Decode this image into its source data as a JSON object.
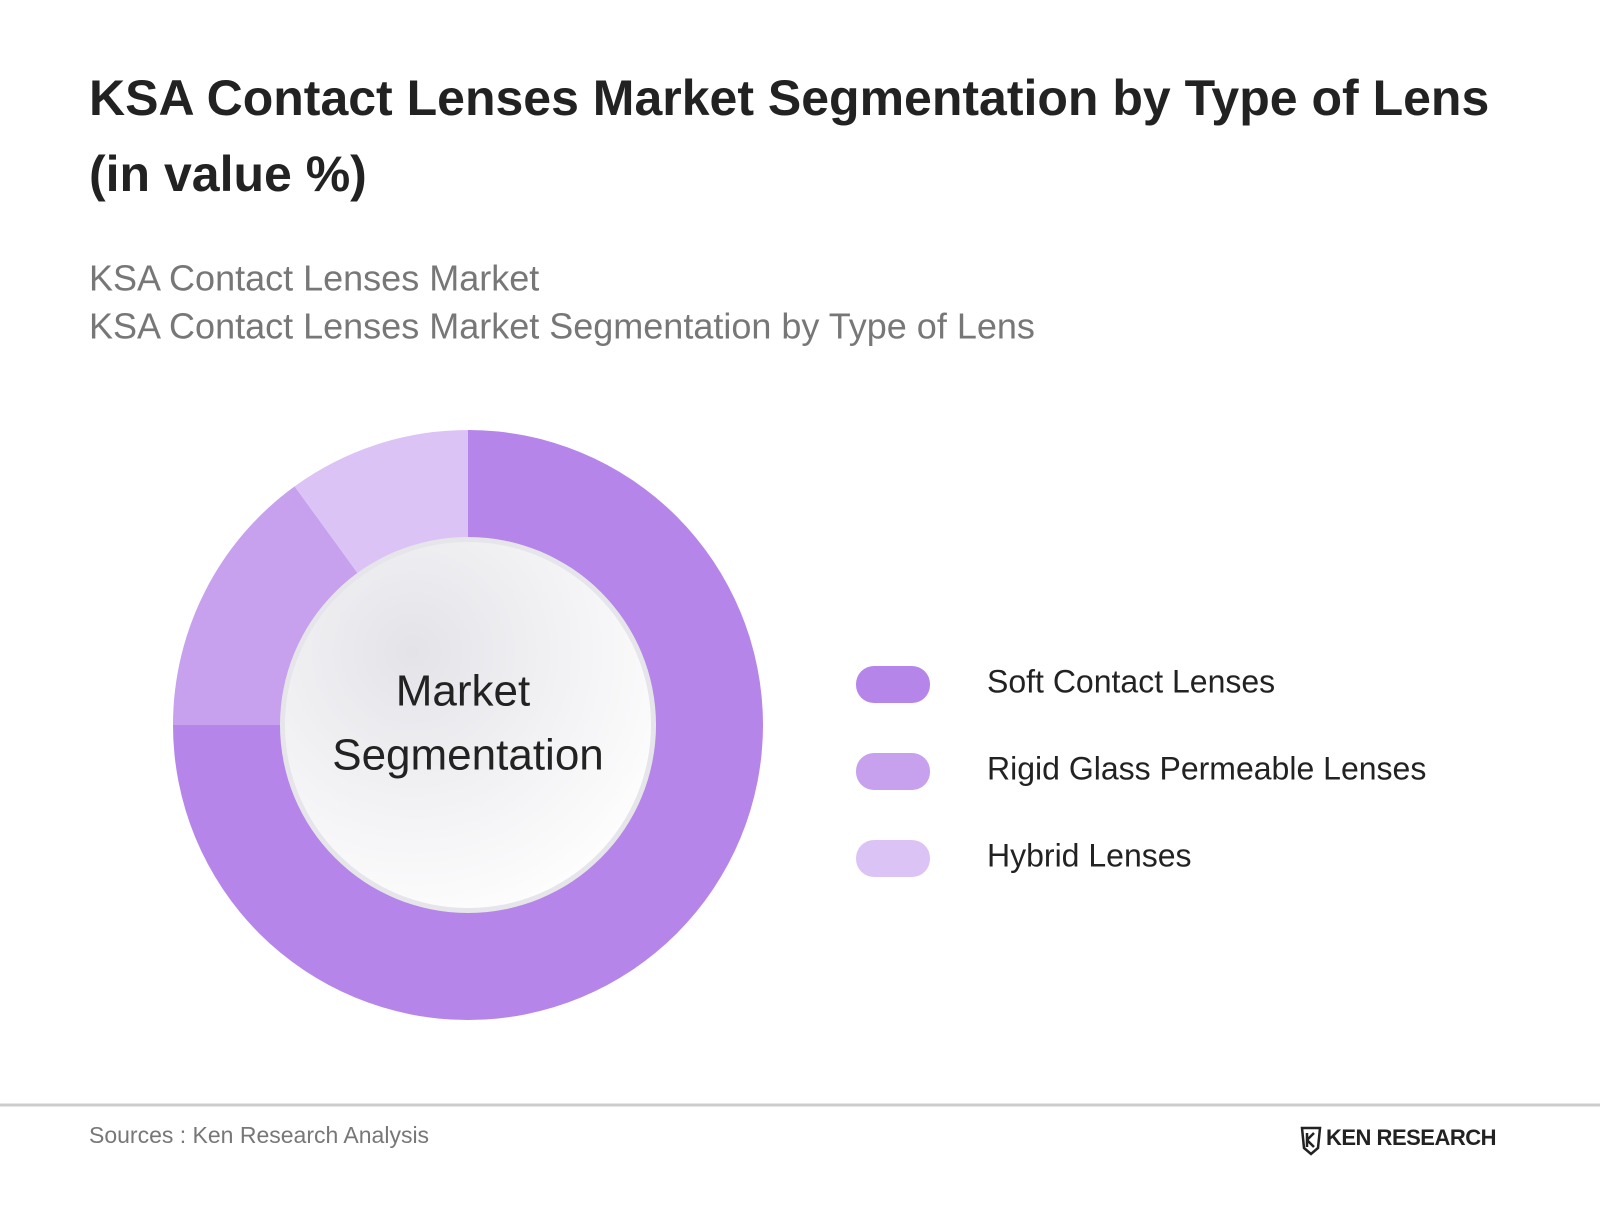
{
  "chart_data": {
    "type": "donut",
    "title": [
      "KSA Contact Lenses Market Segmentation by Type of Lens",
      "(in value %)"
    ],
    "subtitle": [
      "KSA Contact Lenses Market",
      "KSA Contact Lenses Market Segmentation by Type of Lens"
    ],
    "center_label": [
      "Market",
      "Segmentation"
    ],
    "categories": [
      "Soft Contact Lenses",
      "Rigid Glass Permeable Lenses",
      "Hybrid Lenses"
    ],
    "values": [
      75,
      15,
      10
    ],
    "colors": [
      "#b585ea",
      "#c7a0ee",
      "#dcc3f6"
    ],
    "legend": "right"
  },
  "footer": {
    "source": "Sources : Ken Research Analysis",
    "brand": "KEN RESEARCH"
  }
}
